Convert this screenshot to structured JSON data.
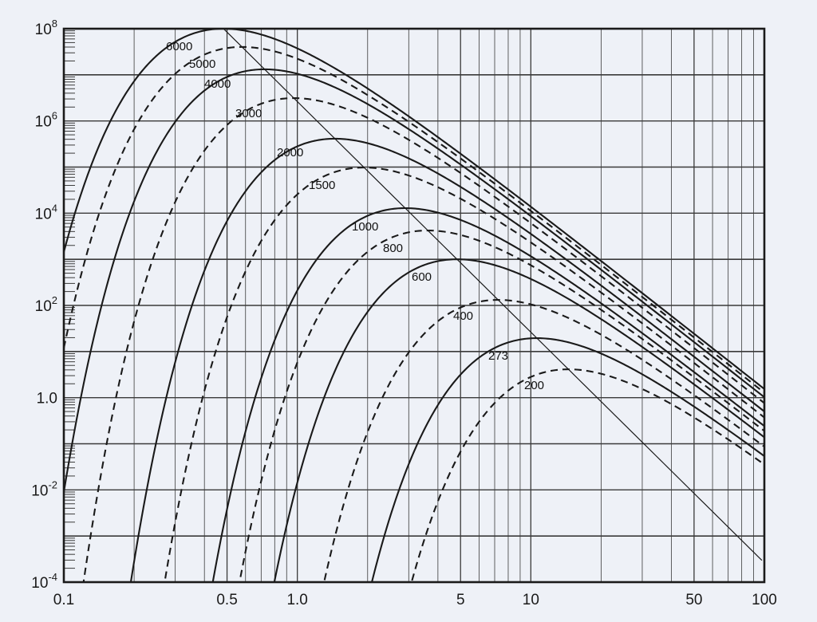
{
  "chart_data": {
    "type": "line",
    "title": "",
    "xlabel": "",
    "ylabel": "",
    "xscale": "log",
    "yscale": "log",
    "xlim": [
      0.1,
      100
    ],
    "ylim": [
      0.0001,
      100000000
    ],
    "grid": true,
    "x_tick_labels": [
      {
        "value": 0.1,
        "label": "0.1"
      },
      {
        "value": 0.5,
        "label": "0.5"
      },
      {
        "value": 1.0,
        "label": "1.0"
      },
      {
        "value": 5,
        "label": "5"
      },
      {
        "value": 10,
        "label": "10"
      },
      {
        "value": 50,
        "label": "50"
      },
      {
        "value": 100,
        "label": "100"
      }
    ],
    "y_tick_labels": [
      {
        "value": 0.0001,
        "base": "10",
        "exp": "-4"
      },
      {
        "value": 0.01,
        "base": "10",
        "exp": "-2"
      },
      {
        "value": 1,
        "base": "1.0",
        "exp": ""
      },
      {
        "value": 100,
        "base": "10",
        "exp": "2"
      },
      {
        "value": 10000,
        "base": "10",
        "exp": "4"
      },
      {
        "value": 1000000,
        "base": "10",
        "exp": "6"
      },
      {
        "value": 100000000,
        "base": "10",
        "exp": "8"
      }
    ],
    "series": [
      {
        "name": "6000",
        "temperature": 6000,
        "style": "solid"
      },
      {
        "name": "5000",
        "temperature": 5000,
        "style": "dashed"
      },
      {
        "name": "4000",
        "temperature": 4000,
        "style": "solid"
      },
      {
        "name": "3000",
        "temperature": 3000,
        "style": "dashed"
      },
      {
        "name": "2000",
        "temperature": 2000,
        "style": "solid"
      },
      {
        "name": "1500",
        "temperature": 1500,
        "style": "dashed"
      },
      {
        "name": "1000",
        "temperature": 1000,
        "style": "solid"
      },
      {
        "name": "800",
        "temperature": 800,
        "style": "dashed"
      },
      {
        "name": "600",
        "temperature": 600,
        "style": "solid"
      },
      {
        "name": "400",
        "temperature": 400,
        "style": "dashed"
      },
      {
        "name": "273",
        "temperature": 273,
        "style": "solid"
      },
      {
        "name": "200",
        "temperature": 200,
        "style": "dashed"
      }
    ],
    "wien_line": {
      "constant": 2898,
      "style": "solid-thin"
    },
    "colors": {
      "background": "#eef1f7",
      "line": "#1a1a1a",
      "grid": "#3a3a3a"
    }
  }
}
